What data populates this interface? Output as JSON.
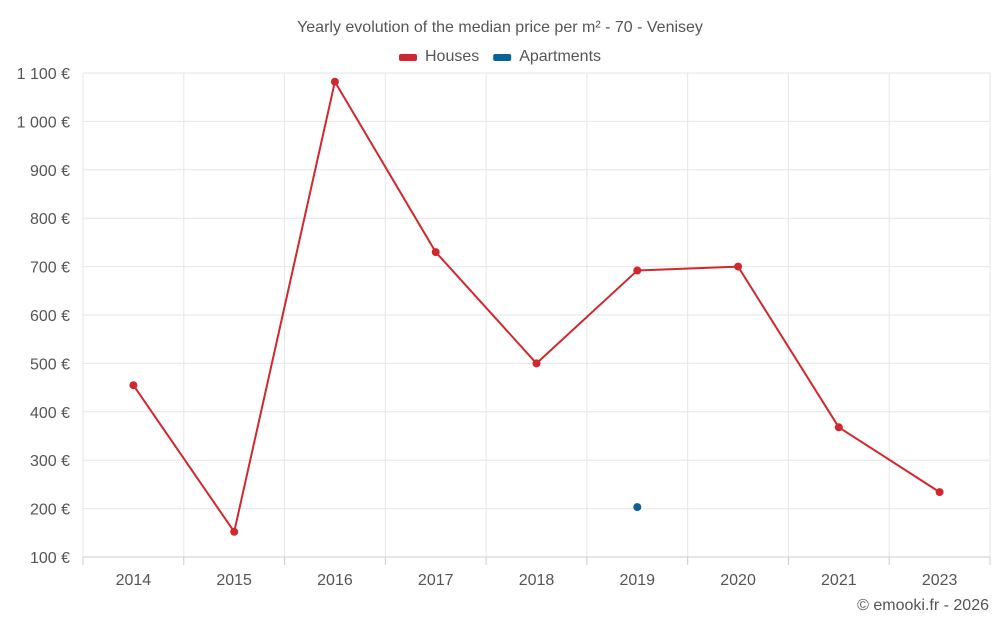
{
  "chart_data": {
    "type": "line",
    "title": "Yearly evolution of the median price per m² - 70 - Venisey",
    "categories": [
      "2014",
      "2015",
      "2016",
      "2017",
      "2018",
      "2019",
      "2020",
      "2021",
      "2023"
    ],
    "series": [
      {
        "name": "Houses",
        "color": "#d0282e",
        "values": [
          455,
          152,
          1082,
          730,
          500,
          692,
          700,
          368,
          234
        ]
      },
      {
        "name": "Apartments",
        "color": "#0b6296",
        "values": [
          null,
          null,
          null,
          null,
          null,
          203,
          null,
          null,
          null
        ]
      }
    ],
    "ylim": [
      100,
      1100
    ],
    "yticks": [
      100,
      200,
      300,
      400,
      500,
      600,
      700,
      800,
      900,
      1000,
      1100
    ],
    "ytick_labels": [
      "100 €",
      "200 €",
      "300 €",
      "400 €",
      "500 €",
      "600 €",
      "700 €",
      "800 €",
      "900 €",
      "1 000 €",
      "1 100 €"
    ],
    "xlabel": "",
    "ylabel": "",
    "grid": true,
    "legend_position": "top-center",
    "copyright": "© emooki.fr - 2026"
  }
}
